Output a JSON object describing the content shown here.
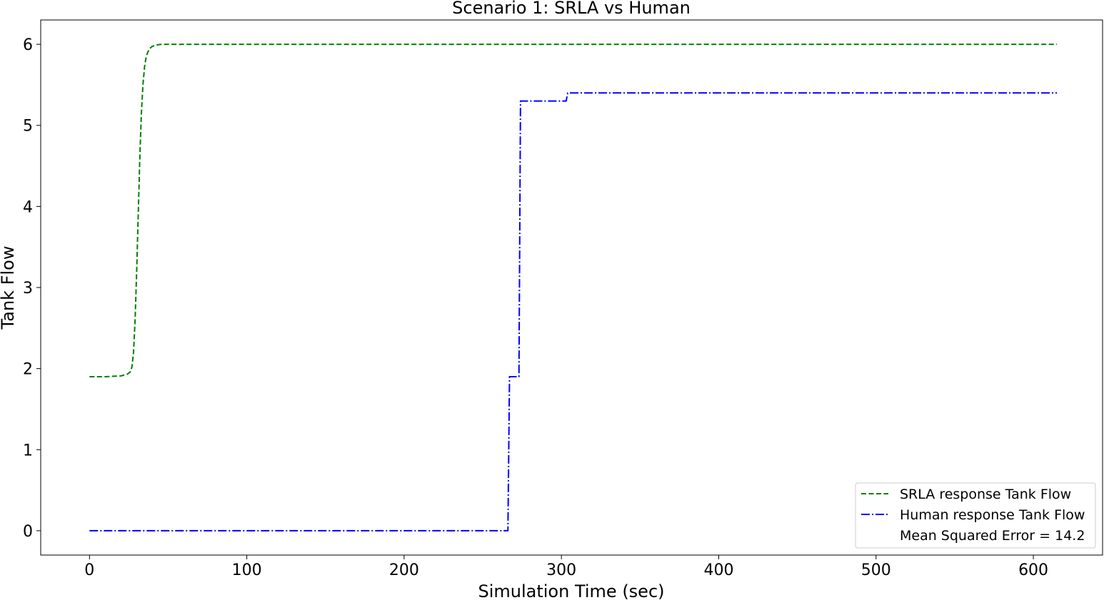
{
  "chart_data": {
    "type": "line",
    "title": "Scenario 1: SRLA vs Human",
    "xlabel": "Simulation Time (sec)",
    "ylabel": "Tank Flow",
    "xlim": [
      -31,
      644
    ],
    "ylim": [
      -0.3,
      6.3
    ],
    "xticks": [
      0,
      100,
      200,
      300,
      400,
      500,
      600
    ],
    "yticks": [
      0,
      1,
      2,
      3,
      4,
      5,
      6
    ],
    "grid": false,
    "legend_position": "lower right",
    "series": [
      {
        "name": "SRLA response Tank Flow",
        "color": "#008000",
        "style": "dashed",
        "x": [
          0,
          10,
          20,
          24,
          26,
          27,
          28,
          29,
          30,
          31,
          32,
          33,
          34,
          35,
          36,
          37,
          38,
          39,
          40,
          42,
          44,
          46,
          50,
          60,
          100,
          200,
          300,
          400,
          500,
          615
        ],
        "y": [
          1.9,
          1.9,
          1.91,
          1.93,
          1.96,
          2.02,
          2.2,
          2.6,
          3.2,
          3.9,
          4.6,
          5.15,
          5.5,
          5.72,
          5.84,
          5.9,
          5.94,
          5.96,
          5.975,
          5.99,
          5.995,
          6.0,
          6.0,
          6.0,
          6.0,
          6.0,
          6.0,
          6.0,
          6.0,
          6.0
        ]
      },
      {
        "name": "Human response Tank Flow",
        "color": "#0000ff",
        "style": "dashdot",
        "x": [
          0,
          266,
          267,
          273,
          274,
          303,
          304,
          615
        ],
        "y": [
          0,
          0,
          1.9,
          1.9,
          5.3,
          5.3,
          5.4,
          5.4
        ]
      }
    ],
    "annotations": [
      "Mean Squared Error = 14.2"
    ]
  }
}
